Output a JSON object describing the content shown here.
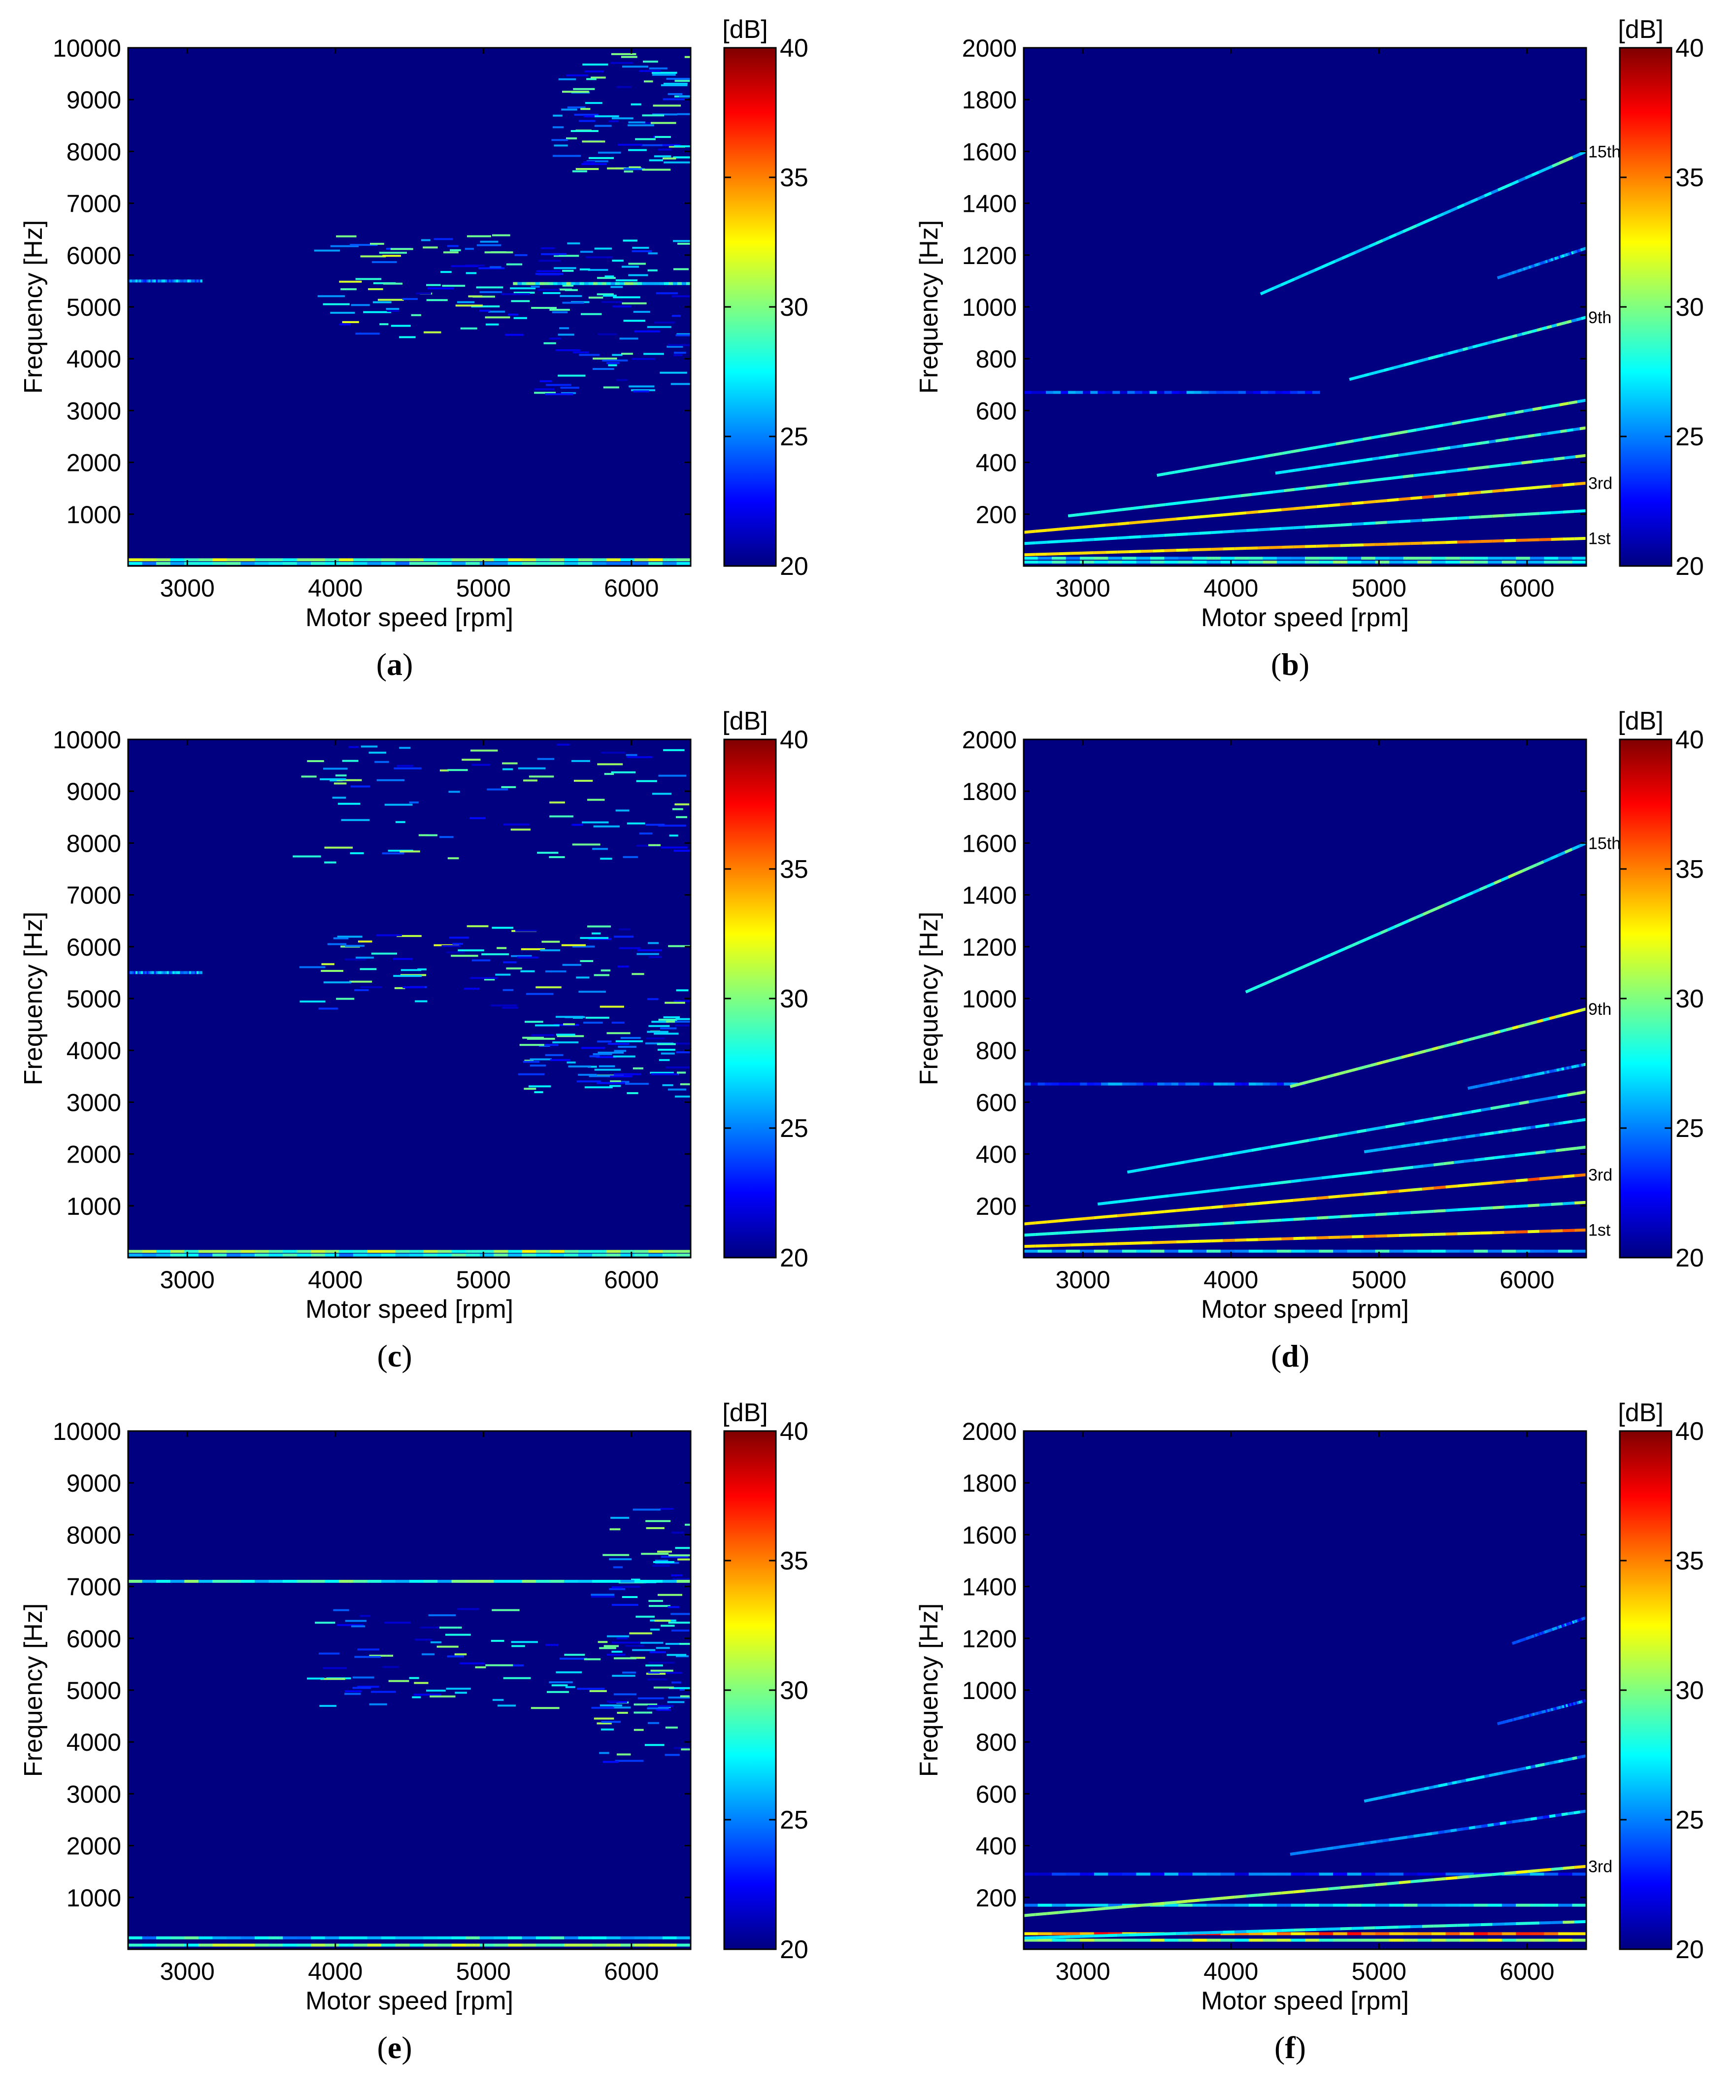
{
  "colors": {
    "background": "#000080",
    "colormap": [
      "#000080",
      "#0000ff",
      "#0080ff",
      "#00ffff",
      "#80ff80",
      "#ffff00",
      "#ff8000",
      "#ff0000",
      "#800000"
    ]
  },
  "chart_data": [
    {
      "panel": "a",
      "caption_letter": "a",
      "type": "heatmap",
      "xlabel": "Motor speed [rpm]",
      "ylabel": "Frequency [Hz]",
      "xlim": [
        2600,
        6400
      ],
      "ylim": [
        0,
        10000
      ],
      "xticks": [
        3000,
        4000,
        5000,
        6000
      ],
      "yticks": [
        1000,
        2000,
        3000,
        4000,
        5000,
        6000,
        7000,
        8000,
        9000,
        10000
      ],
      "colorbar": {
        "label": "[dB]",
        "range": [
          20,
          40
        ],
        "ticks": [
          20,
          25,
          30,
          35,
          40
        ]
      },
      "order_labels": [],
      "order_lines": [],
      "clusters": [
        {
          "x": [
            3900,
            5600
          ],
          "y": [
            4400,
            6400
          ],
          "level": 27
        },
        {
          "x": [
            5500,
            6400
          ],
          "y": [
            7600,
            9900
          ],
          "level": 26
        },
        {
          "x": [
            5400,
            6400
          ],
          "y": [
            3200,
            6400
          ],
          "level": 25
        }
      ],
      "flat_bands": [
        {
          "y": 5500,
          "x": [
            2600,
            3100
          ],
          "level": 25
        },
        {
          "y": 5450,
          "x": [
            5200,
            6400
          ],
          "level": 28
        },
        {
          "y": 120,
          "x": [
            2600,
            6400
          ],
          "level": 30
        },
        {
          "y": 50,
          "x": [
            2600,
            6400
          ],
          "level": 27
        }
      ]
    },
    {
      "panel": "b",
      "caption_letter": "b",
      "type": "heatmap",
      "xlabel": "Motor speed [rpm]",
      "ylabel": "Frequency [Hz]",
      "xlim": [
        2600,
        6400
      ],
      "ylim": [
        0,
        2000
      ],
      "xticks": [
        3000,
        4000,
        5000,
        6000
      ],
      "yticks": [
        200,
        400,
        600,
        800,
        1000,
        1200,
        1400,
        1600,
        1800,
        2000
      ],
      "colorbar": {
        "label": "[dB]",
        "range": [
          20,
          40
        ],
        "ticks": [
          20,
          25,
          30,
          35,
          40
        ]
      },
      "order_labels": [
        {
          "text": "15th",
          "freq": 1600
        },
        {
          "text": "9th",
          "freq": 960
        },
        {
          "text": "3rd",
          "freq": 320
        },
        {
          "text": "1st",
          "freq": 107
        }
      ],
      "order_lines": [
        {
          "order": 1,
          "x": [
            2600,
            6400
          ],
          "level": 33
        },
        {
          "order": 2,
          "x": [
            2600,
            6400
          ],
          "level": 27
        },
        {
          "order": 3,
          "x": [
            2600,
            6400
          ],
          "level": 33
        },
        {
          "order": 4,
          "x": [
            2900,
            6400
          ],
          "level": 28
        },
        {
          "order": 5,
          "x": [
            4300,
            6400
          ],
          "level": 27
        },
        {
          "order": 6,
          "x": [
            3500,
            6400
          ],
          "level": 28
        },
        {
          "order": 9,
          "x": [
            4800,
            6400
          ],
          "level": 27
        },
        {
          "order": 11.5,
          "x": [
            5800,
            6400
          ],
          "level": 25
        },
        {
          "order": 15,
          "x": [
            4200,
            6400
          ],
          "level": 27
        }
      ],
      "clusters": [],
      "flat_bands": [
        {
          "y": 670,
          "x": [
            2600,
            4600
          ],
          "level": 24
        },
        {
          "y": 30,
          "x": [
            2600,
            6400
          ],
          "level": 27
        },
        {
          "y": 15,
          "x": [
            2600,
            6400
          ],
          "level": 28
        }
      ]
    },
    {
      "panel": "c",
      "caption_letter": "c",
      "type": "heatmap",
      "xlabel": "Motor speed [rpm]",
      "ylabel": "Frequency [Hz]",
      "xlim": [
        2600,
        6400
      ],
      "ylim": [
        0,
        10000
      ],
      "xticks": [
        3000,
        4000,
        5000,
        6000
      ],
      "yticks": [
        1000,
        2000,
        3000,
        4000,
        5000,
        6000,
        7000,
        8000,
        9000,
        10000
      ],
      "colorbar": {
        "label": "[dB]",
        "range": [
          20,
          40
        ],
        "ticks": [
          20,
          25,
          30,
          35,
          40
        ]
      },
      "order_labels": [],
      "order_lines": [],
      "clusters": [
        {
          "x": [
            3800,
            6400
          ],
          "y": [
            4800,
            6400
          ],
          "level": 27
        },
        {
          "x": [
            3800,
            6400
          ],
          "y": [
            7600,
            9900
          ],
          "level": 26
        },
        {
          "x": [
            5300,
            6400
          ],
          "y": [
            3100,
            4700
          ],
          "level": 25
        }
      ],
      "flat_bands": [
        {
          "y": 5500,
          "x": [
            2600,
            3100
          ],
          "level": 25
        },
        {
          "y": 120,
          "x": [
            2600,
            6400
          ],
          "level": 30
        },
        {
          "y": 50,
          "x": [
            2600,
            6400
          ],
          "level": 27
        }
      ]
    },
    {
      "panel": "d",
      "caption_letter": "d",
      "type": "heatmap",
      "xlabel": "Motor speed [rpm]",
      "ylabel": "Frequency [Hz]",
      "xlim": [
        2600,
        6400
      ],
      "ylim": [
        0,
        2000
      ],
      "xticks": [
        3000,
        4000,
        5000,
        6000
      ],
      "yticks": [
        200,
        400,
        600,
        800,
        1000,
        1200,
        1400,
        1600,
        1800,
        2000
      ],
      "colorbar": {
        "label": "[dB]",
        "range": [
          20,
          40
        ],
        "ticks": [
          20,
          25,
          30,
          35,
          40
        ]
      },
      "order_labels": [
        {
          "text": "15th",
          "freq": 1600
        },
        {
          "text": "9th",
          "freq": 960
        },
        {
          "text": "3rd",
          "freq": 320
        },
        {
          "text": "1st",
          "freq": 107
        }
      ],
      "order_lines": [
        {
          "order": 1,
          "x": [
            2600,
            6400
          ],
          "level": 33
        },
        {
          "order": 2,
          "x": [
            2600,
            6400
          ],
          "level": 28
        },
        {
          "order": 3,
          "x": [
            2600,
            6400
          ],
          "level": 33
        },
        {
          "order": 4,
          "x": [
            3100,
            6400
          ],
          "level": 27
        },
        {
          "order": 5,
          "x": [
            4900,
            6400
          ],
          "level": 26
        },
        {
          "order": 6,
          "x": [
            3300,
            6400
          ],
          "level": 27
        },
        {
          "order": 7,
          "x": [
            5600,
            6400
          ],
          "level": 25
        },
        {
          "order": 9,
          "x": [
            4400,
            6400
          ],
          "level": 30
        },
        {
          "order": 15,
          "x": [
            4100,
            6400
          ],
          "level": 28
        }
      ],
      "clusters": [],
      "flat_bands": [
        {
          "y": 670,
          "x": [
            2600,
            4500
          ],
          "level": 24
        },
        {
          "y": 25,
          "x": [
            2600,
            6400
          ],
          "level": 27
        }
      ]
    },
    {
      "panel": "e",
      "caption_letter": "e",
      "type": "heatmap",
      "xlabel": "Motor speed [rpm]",
      "ylabel": "Frequency [Hz]",
      "xlim": [
        2600,
        6400
      ],
      "ylim": [
        0,
        10000
      ],
      "xticks": [
        3000,
        4000,
        5000,
        6000
      ],
      "yticks": [
        1000,
        2000,
        3000,
        4000,
        5000,
        6000,
        7000,
        8000,
        9000,
        10000
      ],
      "colorbar": {
        "label": "[dB]",
        "range": [
          20,
          40
        ],
        "ticks": [
          20,
          25,
          30,
          35,
          40
        ]
      },
      "order_labels": [],
      "order_lines": [],
      "clusters": [
        {
          "x": [
            3800,
            6400
          ],
          "y": [
            4600,
            6600
          ],
          "level": 26
        },
        {
          "x": [
            5800,
            6400
          ],
          "y": [
            3600,
            8500
          ],
          "level": 26
        }
      ],
      "flat_bands": [
        {
          "y": 7100,
          "x": [
            2600,
            6400
          ],
          "level": 28
        },
        {
          "y": 220,
          "x": [
            2600,
            6400
          ],
          "level": 27
        },
        {
          "y": 80,
          "x": [
            2600,
            6400
          ],
          "level": 30
        }
      ]
    },
    {
      "panel": "f",
      "caption_letter": "f",
      "type": "heatmap",
      "xlabel": "Motor speed [rpm]",
      "ylabel": "Frequency [Hz]",
      "xlim": [
        2600,
        6400
      ],
      "ylim": [
        0,
        2000
      ],
      "xticks": [
        3000,
        4000,
        5000,
        6000
      ],
      "yticks": [
        200,
        400,
        600,
        800,
        1000,
        1200,
        1400,
        1600,
        1800,
        2000
      ],
      "colorbar": {
        "label": "[dB]",
        "range": [
          20,
          40
        ],
        "ticks": [
          20,
          25,
          30,
          35,
          40
        ]
      },
      "order_labels": [
        {
          "text": "3rd",
          "freq": 320
        }
      ],
      "order_lines": [
        {
          "order": 1,
          "x": [
            2600,
            6400
          ],
          "level": 27
        },
        {
          "order": 3,
          "x": [
            2600,
            6400
          ],
          "level": 30
        },
        {
          "order": 5,
          "x": [
            4400,
            6400
          ],
          "level": 25
        },
        {
          "order": 7,
          "x": [
            4900,
            6400
          ],
          "level": 26
        },
        {
          "order": 9,
          "x": [
            5800,
            6400
          ],
          "level": 24
        },
        {
          "order": 12,
          "x": [
            5900,
            6400
          ],
          "level": 24
        }
      ],
      "clusters": [],
      "flat_bands": [
        {
          "y": 290,
          "x": [
            2600,
            6400
          ],
          "level": 24
        },
        {
          "y": 170,
          "x": [
            2600,
            6400
          ],
          "level": 27
        },
        {
          "y": 60,
          "x": [
            2600,
            6400
          ],
          "level": 35
        },
        {
          "y": 35,
          "x": [
            2600,
            6400
          ],
          "level": 30
        }
      ]
    }
  ]
}
